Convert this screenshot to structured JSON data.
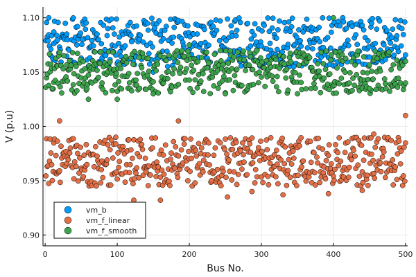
{
  "chart_data": {
    "type": "scatter",
    "xlabel": "Bus No.",
    "ylabel": "V (p.u)",
    "xlim": [
      -3,
      503
    ],
    "ylim": [
      0.89,
      1.11
    ],
    "xticks": [
      0,
      100,
      200,
      300,
      400,
      500
    ],
    "yticks": [
      0.9,
      0.95,
      1.0,
      1.05,
      1.1
    ],
    "xtick_labels": [
      "0",
      "100",
      "200",
      "300",
      "400",
      "500"
    ],
    "ytick_labels": [
      "0.90",
      "0.95",
      "1.00",
      "1.05",
      "1.10"
    ],
    "grid": true,
    "legend_position": "bottom-left",
    "x": {
      "start": 1,
      "end": 500,
      "step": 1
    },
    "series": [
      {
        "name": "vm_b",
        "color": "#009af9",
        "typical_range": [
          1.055,
          1.1
        ],
        "notable_points": [
          [
            5,
            1.1
          ],
          [
            12,
            1.087
          ],
          [
            30,
            1.085
          ],
          [
            52,
            1.08
          ],
          [
            120,
            1.078
          ],
          [
            150,
            1.05
          ],
          [
            180,
            1.06
          ],
          [
            270,
            1.06
          ],
          [
            345,
            1.055
          ],
          [
            380,
            1.06
          ],
          [
            455,
            1.06
          ],
          [
            495,
            1.09
          ]
        ]
      },
      {
        "name": "vm_f_linear",
        "color": "#e26f46",
        "typical_range": [
          0.945,
          0.99
        ],
        "notable_points": [
          [
            20,
            1.005
          ],
          [
            98,
            0.99
          ],
          [
            123,
            0.932
          ],
          [
            160,
            0.932
          ],
          [
            185,
            1.005
          ],
          [
            253,
            0.935
          ],
          [
            287,
            0.94
          ],
          [
            330,
            0.937
          ],
          [
            393,
            0.938
          ],
          [
            440,
            0.941
          ],
          [
            456,
            0.993
          ],
          [
            500,
            1.01
          ]
        ]
      },
      {
        "name": "vm_f_smooth",
        "color": "#3da44d",
        "typical_range": [
          1.03,
          1.07
        ],
        "notable_points": [
          [
            10,
            1.035
          ],
          [
            60,
            1.025
          ],
          [
            100,
            1.025
          ],
          [
            150,
            1.03
          ],
          [
            200,
            1.075
          ],
          [
            250,
            1.03
          ],
          [
            350,
            1.03
          ],
          [
            400,
            1.1
          ],
          [
            450,
            1.035
          ],
          [
            500,
            1.06
          ]
        ]
      }
    ]
  }
}
